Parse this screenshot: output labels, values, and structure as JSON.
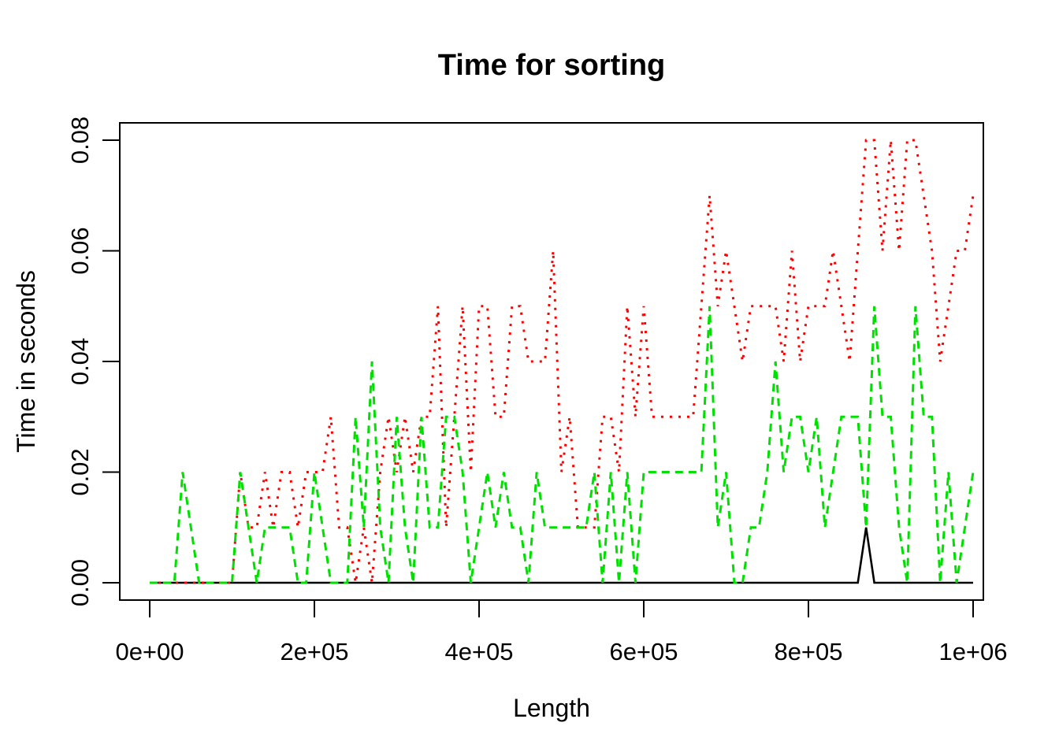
{
  "chart_data": {
    "type": "line",
    "title": "Time for sorting",
    "xlabel": "Length",
    "ylabel": "Time in seconds",
    "xlim": [
      0,
      1000000
    ],
    "ylim": [
      0,
      0.08
    ],
    "grid": false,
    "legend": "none",
    "background": "#FFFFFF",
    "box_color": "#000000",
    "x_ticks": {
      "values": [
        0,
        200000,
        400000,
        600000,
        800000,
        1000000
      ],
      "labels": [
        "0e+00",
        "2e+05",
        "4e+05",
        "6e+05",
        "8e+05",
        "1e+06"
      ]
    },
    "y_ticks": {
      "values": [
        0,
        0.02,
        0.04,
        0.06,
        0.08
      ],
      "labels": [
        "0.00",
        "0.02",
        "0.04",
        "0.06",
        "0.08"
      ]
    },
    "x_start": 0,
    "x_step": 10000,
    "series": [
      {
        "name": "black-solid",
        "color": "#000000",
        "line_style": "solid",
        "values": [
          0,
          0,
          0,
          0,
          0,
          0,
          0,
          0,
          0,
          0,
          0,
          0,
          0,
          0,
          0,
          0,
          0,
          0,
          0,
          0,
          0,
          0,
          0,
          0,
          0,
          0,
          0,
          0,
          0,
          0,
          0,
          0,
          0,
          0,
          0,
          0,
          0,
          0,
          0,
          0,
          0,
          0,
          0,
          0,
          0,
          0,
          0,
          0,
          0,
          0,
          0,
          0,
          0,
          0,
          0,
          0,
          0,
          0,
          0,
          0,
          0,
          0,
          0,
          0,
          0,
          0,
          0,
          0,
          0,
          0,
          0,
          0,
          0,
          0,
          0,
          0,
          0,
          0,
          0,
          0,
          0,
          0,
          0,
          0,
          0,
          0,
          0,
          0.01,
          0,
          0,
          0,
          0,
          0,
          0,
          0,
          0,
          0,
          0,
          0,
          0,
          0
        ]
      },
      {
        "name": "red-dotted",
        "color": "#FF0000",
        "line_style": "dotted",
        "values": [
          0,
          0,
          0,
          0,
          0,
          0,
          0,
          0,
          0,
          0,
          0,
          0.02,
          0.01,
          0.01,
          0.02,
          0.01,
          0.02,
          0.02,
          0.01,
          0.02,
          0.02,
          0.02,
          0.03,
          0.01,
          0.01,
          0,
          0.01,
          0,
          0.02,
          0.03,
          0.02,
          0.03,
          0.02,
          0.03,
          0.03,
          0.05,
          0.01,
          0.03,
          0.05,
          0.02,
          0.05,
          0.05,
          0.03,
          0.03,
          0.05,
          0.05,
          0.04,
          0.04,
          0.04,
          0.06,
          0.02,
          0.03,
          0.01,
          0.01,
          0.01,
          0.03,
          0.03,
          0.02,
          0.05,
          0.03,
          0.05,
          0.03,
          0.03,
          0.03,
          0.03,
          0.03,
          0.03,
          0.05,
          0.07,
          0.05,
          0.06,
          0.05,
          0.04,
          0.05,
          0.05,
          0.05,
          0.05,
          0.04,
          0.06,
          0.04,
          0.05,
          0.05,
          0.05,
          0.06,
          0.05,
          0.04,
          0.06,
          0.08,
          0.08,
          0.06,
          0.08,
          0.06,
          0.08,
          0.08,
          0.07,
          0.06,
          0.04,
          0.05,
          0.06,
          0.06,
          0.07
        ]
      },
      {
        "name": "green-dashed",
        "color": "#00E000",
        "line_style": "dashed",
        "values": [
          0,
          0,
          0,
          0,
          0.02,
          0.01,
          0,
          0,
          0,
          0,
          0,
          0.02,
          0.01,
          0,
          0.01,
          0.01,
          0.01,
          0.01,
          0,
          0,
          0.02,
          0.01,
          0,
          0,
          0,
          0.03,
          0.01,
          0.04,
          0.01,
          0,
          0.03,
          0.01,
          0,
          0.03,
          0.01,
          0.01,
          0.03,
          0.03,
          0.02,
          0,
          0.01,
          0.02,
          0.01,
          0.02,
          0.01,
          0.01,
          0,
          0.02,
          0.01,
          0.01,
          0.01,
          0.01,
          0.01,
          0.01,
          0.02,
          0,
          0.02,
          0,
          0.02,
          0,
          0.02,
          0.02,
          0.02,
          0.02,
          0.02,
          0.02,
          0.02,
          0.02,
          0.05,
          0.01,
          0.02,
          0,
          0,
          0.01,
          0.01,
          0.02,
          0.04,
          0.02,
          0.03,
          0.03,
          0.02,
          0.03,
          0.01,
          0.02,
          0.03,
          0.03,
          0.03,
          0.01,
          0.05,
          0.03,
          0.03,
          0.01,
          0,
          0.05,
          0.03,
          0.03,
          0,
          0.02,
          0,
          0.01,
          0.02
        ]
      }
    ]
  }
}
